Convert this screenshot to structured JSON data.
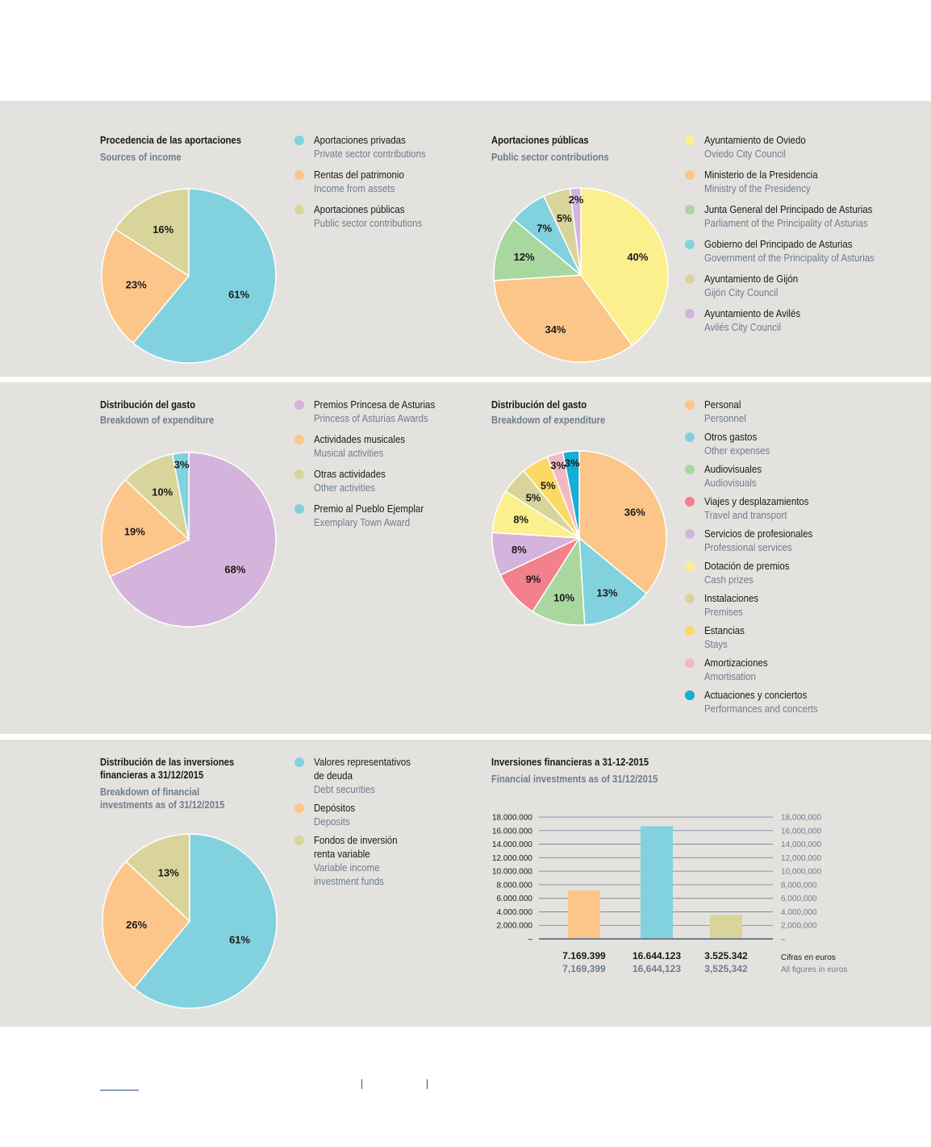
{
  "chart_data": [
    {
      "type": "pie",
      "title": "Procedencia de las aportaciones",
      "subtitle": "Sources of income",
      "slices": [
        {
          "label": "Aportaciones privadas",
          "label_en": "Private sector contributions",
          "value": 61,
          "value_label": "61%",
          "color": "#82d1de"
        },
        {
          "label": "Rentas del patrimonio",
          "label_en": "Income from assets",
          "value": 23,
          "value_label": "23%",
          "color": "#fcc68a"
        },
        {
          "label": "Aportaciones públicas",
          "label_en": "Public sector contributions",
          "value": 16,
          "value_label": "16%",
          "color": "#d9d59a"
        }
      ]
    },
    {
      "type": "pie",
      "title": "Aportaciones públicas",
      "subtitle": "Public sector contributions",
      "slices": [
        {
          "label": "Ayuntamiento de Oviedo",
          "label_en": "Oviedo City Council",
          "value": 40,
          "value_label": "40%",
          "color": "#fcef8e"
        },
        {
          "label": "Ministerio de la Presidencia",
          "label_en": "Ministry of the Presidency",
          "value": 34,
          "value_label": "34%",
          "color": "#fcc68a"
        },
        {
          "label": "Junta General del Principado de Asturias",
          "label_en": "Parliament of the Principality of Asturias",
          "value": 12,
          "value_label": "12%",
          "color": "#a8d7a0"
        },
        {
          "label": "Gobierno del Principado de Asturias",
          "label_en": "Government of the Principality of Asturias",
          "value": 7,
          "value_label": "7%",
          "color": "#82d1de"
        },
        {
          "label": "Ayuntamiento de Gijón",
          "label_en": "Gijón City Council",
          "value": 5,
          "value_label": "5%",
          "color": "#d9d59a"
        },
        {
          "label": "Ayuntamiento de Avilés",
          "label_en": "Avilés City Council",
          "value": 2,
          "value_label": "2%",
          "color": "#d4b4dc"
        }
      ]
    },
    {
      "type": "pie",
      "title": "Distribución del gasto",
      "subtitle": "Breakdown of expenditure",
      "slices": [
        {
          "label": "Premios Princesa de Asturias",
          "label_en": "Princess of Asturias Awards",
          "value": 68,
          "value_label": "68%",
          "color": "#d4b4dc"
        },
        {
          "label": "Actividades musicales",
          "label_en": "Musical activities",
          "value": 19,
          "value_label": "19%",
          "color": "#fcc68a"
        },
        {
          "label": "Otras actividades",
          "label_en": "Other activities",
          "value": 10,
          "value_label": "10%",
          "color": "#d9d59a"
        },
        {
          "label": "Premio al Pueblo Ejemplar",
          "label_en": "Exemplary Town Award",
          "value": 3,
          "value_label": "3%",
          "color": "#82d1de"
        }
      ]
    },
    {
      "type": "pie",
      "title": "Distribución del gasto",
      "subtitle": "Breakdown of expenditure",
      "slices": [
        {
          "label": "Personal",
          "label_en": "Personnel",
          "value": 36,
          "value_label": "36%",
          "color": "#fcc68a"
        },
        {
          "label": "Otros gastos",
          "label_en": "Other expenses",
          "value": 13,
          "value_label": "13%",
          "color": "#82d1de"
        },
        {
          "label": "Audiovisuales",
          "label_en": "Audiovisuals",
          "value": 10,
          "value_label": "10%",
          "color": "#a8d7a0"
        },
        {
          "label": "Viajes y desplazamientos",
          "label_en": "Travel and transport",
          "value": 9,
          "value_label": "9%",
          "color": "#f2818c"
        },
        {
          "label": "Servicios de profesionales",
          "label_en": "Professional services",
          "value": 8,
          "value_label": "8%",
          "color": "#d4b4dc"
        },
        {
          "label": "Dotación de premios",
          "label_en": "Cash prizes",
          "value": 8,
          "value_label": "8%",
          "color": "#fcef8e"
        },
        {
          "label": "Instalaciones",
          "label_en": "Premises",
          "value": 5,
          "value_label": "5%",
          "color": "#d9d59a"
        },
        {
          "label": "Estancias",
          "label_en": "Stays",
          "value": 5,
          "value_label": "5%",
          "color": "#fcd964"
        },
        {
          "label": "Amortizaciones",
          "label_en": "Amortisation",
          "value": 3,
          "value_label": "3%",
          "color": "#f4b8c4"
        },
        {
          "label": "Actuaciones y conciertos",
          "label_en": "Performances and concerts",
          "value": 3,
          "value_label": "3%",
          "color": "#14aed6"
        }
      ]
    },
    {
      "type": "pie",
      "title": "Distribución de las inversiones\nfinancieras a 31/12/2015",
      "subtitle": "Breakdown of financial\ninvestments as of 31/12/2015",
      "slices": [
        {
          "label": "Valores representativos\nde deuda",
          "label_en": "Debt securities",
          "value": 61,
          "value_label": "61%",
          "color": "#82d1de"
        },
        {
          "label": "Depósitos",
          "label_en": "Deposits",
          "value": 26,
          "value_label": "26%",
          "color": "#fcc68a"
        },
        {
          "label": "Fondos de inversión\nrenta variable",
          "label_en": "Variable income\ninvestment funds",
          "value": 13,
          "value_label": "13%",
          "color": "#d9d59a"
        }
      ]
    },
    {
      "type": "bar",
      "title": "Inversiones financieras a 31-12-2015",
      "subtitle": "Financial investments as of 31/12/2015",
      "ylim": [
        0,
        18000000
      ],
      "y_ticks_left": [
        "18.000.000",
        "16.000.000",
        "14.000.000",
        "12.000.000",
        "10.000.000",
        "8.000.000",
        "6.000.000",
        "4.000.000",
        "2.000.000",
        "–"
      ],
      "y_ticks_right": [
        "18,000,000",
        "16,000,000",
        "14,000,000",
        "12,000,000",
        "10,000,000",
        "8,000,000",
        "6,000,000",
        "4,000,000",
        "2,000,000",
        "–"
      ],
      "values": [
        7169399,
        16644123,
        3525342
      ],
      "colors": [
        "#fcc68a",
        "#82d1de",
        "#d9d59a"
      ],
      "labels_es": [
        "7.169.399",
        "16.644.123",
        "3.525.342"
      ],
      "labels_en": [
        "7,169,399",
        "16,644,123",
        "3,525,342"
      ],
      "note_es": "Cifras en euros",
      "note_en": "All figures in euros",
      "grid": true
    }
  ]
}
